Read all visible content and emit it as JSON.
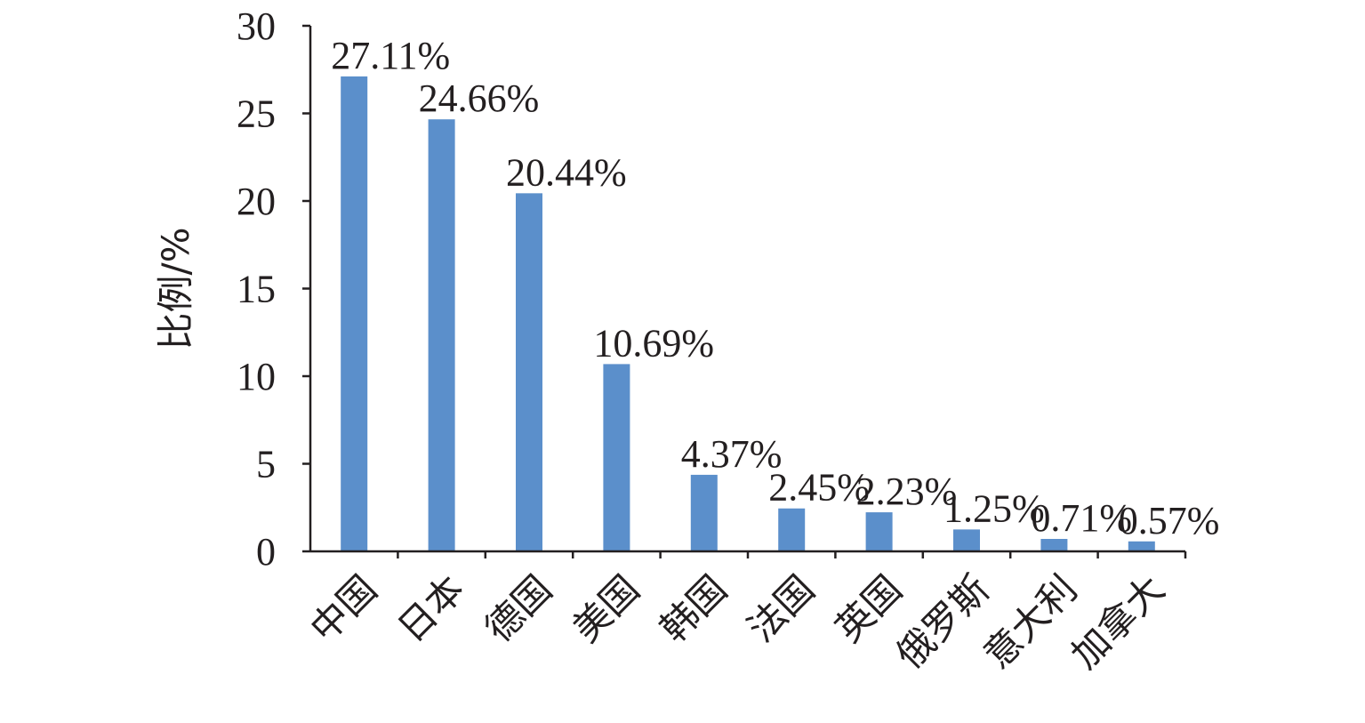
{
  "chart_data": {
    "type": "bar",
    "categories": [
      "中国",
      "日本",
      "德国",
      "美国",
      "韩国",
      "法国",
      "英国",
      "俄罗斯",
      "意大利",
      "加拿大"
    ],
    "values": [
      27.11,
      24.66,
      20.44,
      10.69,
      4.37,
      2.45,
      2.23,
      1.25,
      0.71,
      0.57
    ],
    "data_labels": [
      "27.11%",
      "24.66%",
      "20.44%",
      "10.69%",
      "4.37%",
      "2.45%",
      "2.23%",
      "1.25%",
      "0.71%",
      "0.57%"
    ],
    "ylabel": "比例/%",
    "xlabel": "",
    "ylim": [
      0,
      30
    ],
    "yticks": [
      0,
      5,
      10,
      15,
      20,
      25,
      30
    ],
    "grid": false,
    "legend": "none",
    "bar_color": "#5b8fcb"
  }
}
